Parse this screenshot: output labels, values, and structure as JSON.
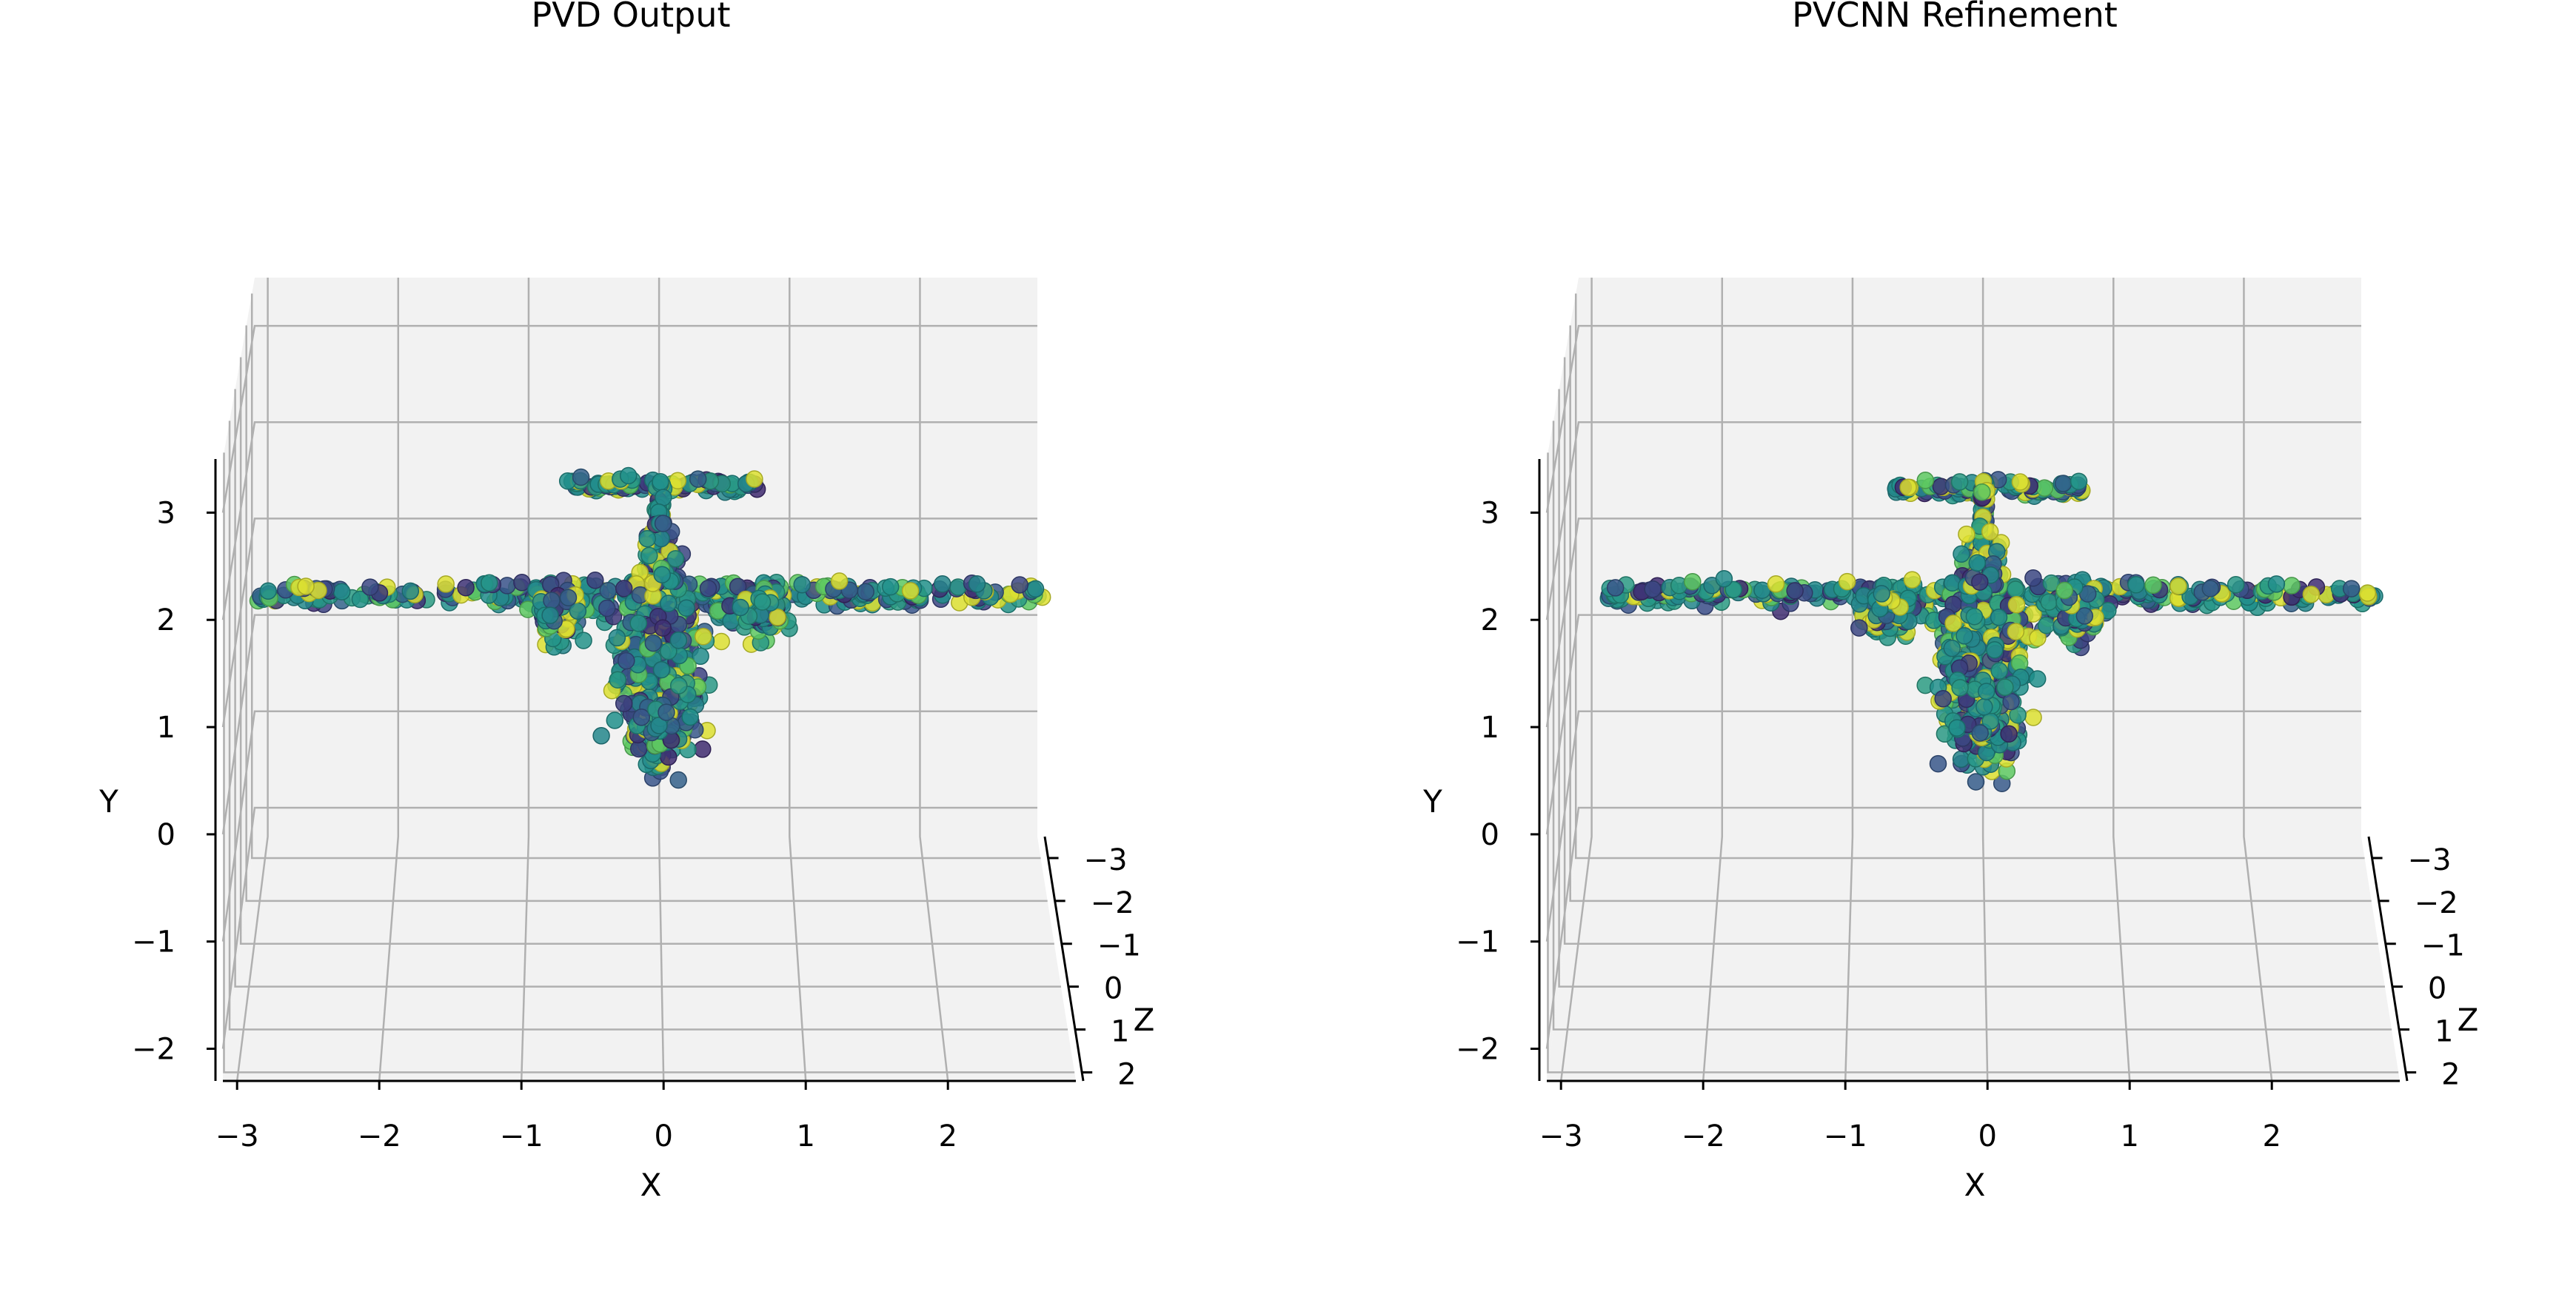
{
  "figure": {
    "background": "#ffffff",
    "pane_color": "#f2f2f2",
    "grid_color": "#b0b0b0",
    "axis_line_color": "#000000"
  },
  "chart_data": [
    {
      "type": "scatter3d",
      "title": "PVD Output",
      "xlabel": "X",
      "ylabel": "Y",
      "zlabel": "Z",
      "x_ticks": [
        "−3",
        "−2",
        "−1",
        "0",
        "1",
        "2"
      ],
      "y_ticks": [
        "−2",
        "−1",
        "0",
        "1",
        "2",
        "3"
      ],
      "z_ticks": [
        "−3",
        "−2",
        "−1",
        "0",
        "1",
        "2"
      ],
      "xlim": [
        -3.1,
        2.9
      ],
      "ylim": [
        -2.3,
        3.5
      ],
      "zlim": [
        -3.5,
        2.2
      ],
      "colormap": "viridis",
      "colormap_stops": [
        "#440154",
        "#3b528b",
        "#21918c",
        "#5ec962",
        "#fde725"
      ],
      "grid": true,
      "point_cloud": {
        "shape": "airplane",
        "center_x": -0.02,
        "wing_y": 1.53,
        "wing_x_range": [
          -2.93,
          2.8
        ],
        "fuselage_y_range": [
          0.0,
          2.0
        ],
        "fuselage_half_width": 0.4,
        "engine_x": [
          -0.78,
          0.72
        ],
        "engine_y": 1.05,
        "tail_y": 2.95,
        "tail_x_range": [
          -0.7,
          0.7
        ],
        "fin_y_range": [
          1.8,
          2.9
        ],
        "seed": 7
      }
    },
    {
      "type": "scatter3d",
      "title": "PVCNN Refinement",
      "xlabel": "X",
      "ylabel": "Y",
      "zlabel": "Z",
      "x_ticks": [
        "−3",
        "−2",
        "−1",
        "0",
        "1",
        "2"
      ],
      "y_ticks": [
        "−2",
        "−1",
        "0",
        "1",
        "2",
        "3"
      ],
      "z_ticks": [
        "−3",
        "−2",
        "−1",
        "0",
        "1",
        "2"
      ],
      "xlim": [
        -3.1,
        2.9
      ],
      "ylim": [
        -2.3,
        3.5
      ],
      "zlim": [
        -3.5,
        2.2
      ],
      "colormap": "viridis",
      "colormap_stops": [
        "#440154",
        "#3b528b",
        "#21918c",
        "#5ec962",
        "#fde725"
      ],
      "grid": true,
      "point_cloud": {
        "shape": "airplane",
        "center_x": -0.02,
        "wing_y": 1.53,
        "wing_x_range": [
          -2.78,
          2.82
        ],
        "fuselage_y_range": [
          0.0,
          2.0
        ],
        "fuselage_half_width": 0.38,
        "engine_x": [
          -0.7,
          0.65
        ],
        "engine_y": 1.05,
        "tail_y": 2.92,
        "tail_x_range": [
          -0.65,
          0.68
        ],
        "fin_y_range": [
          1.8,
          2.9
        ],
        "seed": 23
      }
    }
  ]
}
